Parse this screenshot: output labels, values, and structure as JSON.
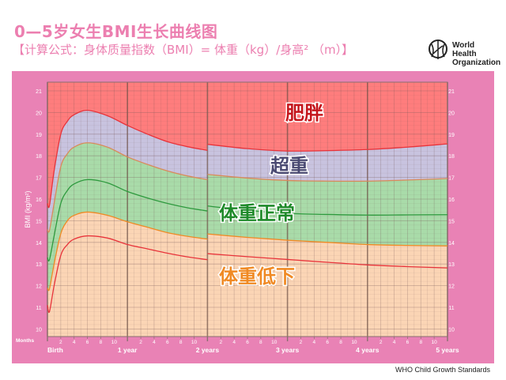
{
  "header": {
    "title": "0—5岁女生BMI生长曲线图",
    "formula": "【计算公式：身体质量指数（BMI）= 体重（kg）/身高² （m）】"
  },
  "logo": {
    "line1": "World Health",
    "line2": "Organization"
  },
  "footer": "WHO Child Growth Standards",
  "colors": {
    "panel": "#e982b5",
    "title": "#ec7fb0",
    "obese": "#ff7d7d",
    "overweight": "#c8c3df",
    "normal": "#a9dba9",
    "underweight": "#fbd5b5"
  },
  "chart_data": {
    "type": "line",
    "ylabel": "BMI (kg/m²)",
    "xlabel": "Months",
    "ylim": [
      9.65,
      21.4
    ],
    "xlim": [
      0,
      60
    ],
    "y_ticks": [
      10,
      11,
      12,
      13,
      14,
      15,
      16,
      17,
      18,
      19,
      20,
      21
    ],
    "month_ticks": [
      "2",
      "4",
      "6",
      "8",
      "10"
    ],
    "year_labels": [
      "Birth",
      "1 year",
      "2 years",
      "3 years",
      "4 years",
      "5 years"
    ],
    "grid": true,
    "zones": [
      {
        "label": "肥胖",
        "color": "#c4161c"
      },
      {
        "label": "超重",
        "color": "#4a4a72"
      },
      {
        "label": "体重正常",
        "color": "#1f8a2a"
      },
      {
        "label": "体重低下",
        "color": "#f08a24"
      }
    ],
    "series": [
      {
        "color": "#e8333a",
        "seg1": {
          "x": [
            0,
            0.3,
            1,
            2,
            3,
            4,
            6,
            9,
            12,
            15,
            18,
            21,
            24
          ],
          "y": [
            15.8,
            15.7,
            17.3,
            19.0,
            19.6,
            19.9,
            20.1,
            19.85,
            19.4,
            19.0,
            18.65,
            18.42,
            18.25
          ]
        },
        "seg2": {
          "x": [
            24,
            30,
            36,
            42,
            48,
            54,
            60
          ],
          "y": [
            18.53,
            18.33,
            18.22,
            18.24,
            18.29,
            18.4,
            18.55
          ]
        }
      },
      {
        "color": "#d98a5a",
        "seg1": {
          "x": [
            0,
            0.3,
            1,
            2,
            3,
            4,
            6,
            9,
            12,
            15,
            18,
            21,
            24
          ],
          "y": [
            14.6,
            14.55,
            15.8,
            17.5,
            18.1,
            18.4,
            18.6,
            18.4,
            17.95,
            17.6,
            17.3,
            17.07,
            16.9
          ]
        },
        "seg2": {
          "x": [
            24,
            30,
            36,
            42,
            48,
            54,
            60
          ],
          "y": [
            17.14,
            16.97,
            16.86,
            16.83,
            16.83,
            16.88,
            16.95
          ]
        }
      },
      {
        "color": "#2e9a3e",
        "seg1": {
          "x": [
            0,
            0.3,
            1,
            2,
            3,
            4,
            6,
            9,
            12,
            15,
            18,
            21,
            24
          ],
          "y": [
            13.3,
            13.2,
            14.3,
            15.8,
            16.4,
            16.7,
            16.9,
            16.75,
            16.35,
            16.05,
            15.8,
            15.6,
            15.45
          ]
        },
        "seg2": {
          "x": [
            24,
            30,
            36,
            42,
            48,
            54,
            60
          ],
          "y": [
            15.68,
            15.48,
            15.34,
            15.29,
            15.26,
            15.27,
            15.28
          ]
        }
      },
      {
        "color": "#f08a24",
        "seg1": {
          "x": [
            0,
            0.3,
            1,
            2,
            3,
            4,
            6,
            9,
            12,
            15,
            18,
            21,
            24
          ],
          "y": [
            11.9,
            11.85,
            13.0,
            14.4,
            15.0,
            15.25,
            15.4,
            15.25,
            14.95,
            14.7,
            14.45,
            14.28,
            14.15
          ]
        },
        "seg2": {
          "x": [
            24,
            30,
            36,
            42,
            48,
            54,
            60
          ],
          "y": [
            14.39,
            14.23,
            14.1,
            14.0,
            13.9,
            13.86,
            13.84
          ]
        }
      },
      {
        "color": "#e8333a",
        "seg1": {
          "x": [
            0,
            0.3,
            1,
            2,
            3,
            4,
            6,
            9,
            12,
            15,
            18,
            21,
            24
          ],
          "y": [
            11.1,
            10.8,
            12.0,
            13.4,
            13.9,
            14.15,
            14.3,
            14.2,
            13.9,
            13.7,
            13.5,
            13.33,
            13.2
          ]
        },
        "seg2": {
          "x": [
            24,
            30,
            36,
            42,
            48,
            54,
            60
          ],
          "y": [
            13.48,
            13.34,
            13.21,
            13.08,
            12.96,
            12.88,
            12.82
          ]
        }
      }
    ]
  }
}
